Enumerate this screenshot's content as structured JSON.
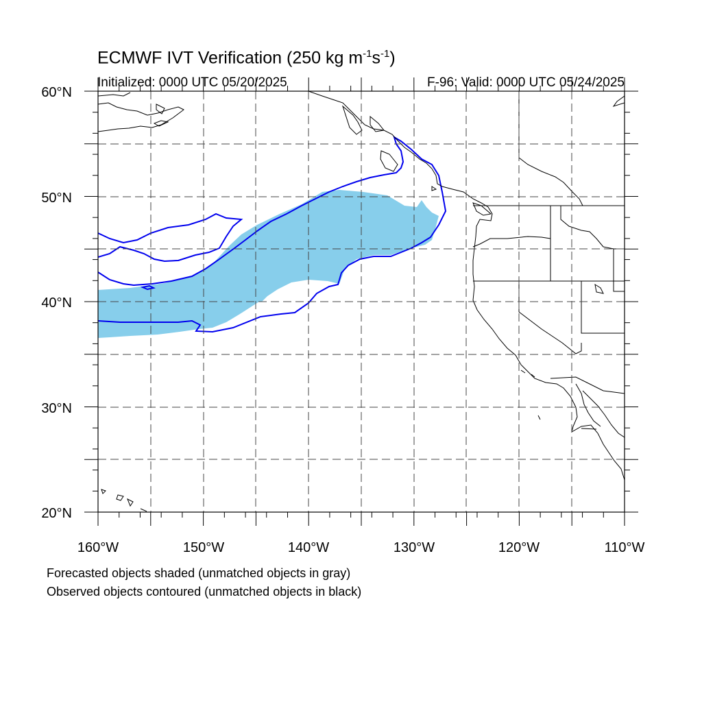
{
  "title": {
    "main": "ECMWF IVT Verification (250 kg m",
    "exp1": "-1",
    "mid": "s",
    "exp2": "-1",
    "close": ")"
  },
  "initialized": "Initialized: 0000 UTC 05/20/2025",
  "valid": "F-96: Valid: 0000 UTC 05/24/2025",
  "lat_labels": [
    "60°N",
    "50°N",
    "40°N",
    "30°N",
    "20°N"
  ],
  "lon_labels": [
    "160°W",
    "150°W",
    "140°W",
    "130°W",
    "120°W",
    "110°W"
  ],
  "footnotes": [
    "Forecasted objects shaded (unmatched objects in gray)",
    "Observed objects contoured (unmatched objects in black)"
  ],
  "colors": {
    "forecast_fill": "#87ceeb",
    "observed_contour": "#0000ee",
    "coast": "#000000",
    "grid": "#555555"
  },
  "map": {
    "projection": "cylindrical equidistant",
    "lon_range": [
      -160,
      -110
    ],
    "lat_range": [
      20,
      60
    ],
    "gridlines_dashed_every_deg": 5
  }
}
